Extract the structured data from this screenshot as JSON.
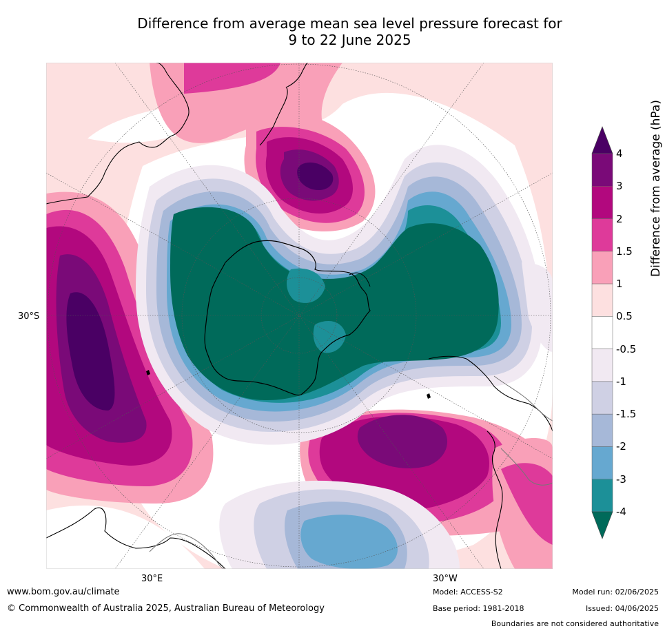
{
  "title_line1": "Difference from average mean sea level pressure forecast for",
  "title_line2": "9 to 22 June 2025",
  "map": {
    "latitude_label": "30°S",
    "longitude_labels": [
      "30°E",
      "30°W"
    ]
  },
  "colorbar": {
    "title": "Difference from average (hPa)",
    "ticks": [
      "4",
      "3",
      "2",
      "1.5",
      "1",
      "0.5",
      "-0.5",
      "-1",
      "-1.5",
      "-2",
      "-3",
      "-4"
    ],
    "colors": [
      "#4a0064",
      "#7a0a78",
      "#b2087e",
      "#de3a9a",
      "#f9a0b8",
      "#fde0e0",
      "#ffffff",
      "#f1e9f2",
      "#cfd0e4",
      "#a6b8d8",
      "#66a8d0",
      "#1c9098",
      "#006a5a"
    ]
  },
  "footer": {
    "website": "www.bom.gov.au/climate",
    "copyright": "© Commonwealth of Australia 2025, Australian Bureau of Meteorology",
    "model": "Model: ACCESS-S2",
    "base_period": "Base period: 1981-2018",
    "model_run": "Model run: 02/06/2025",
    "issued": "Issued: 04/06/2025",
    "disclaimer": "Boundaries are not considered authoritative"
  }
}
